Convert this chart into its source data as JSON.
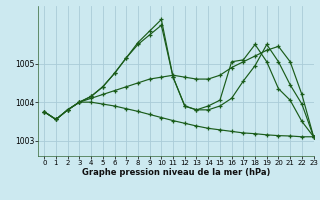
{
  "title": "Graphe pression niveau de la mer (hPa)",
  "background_color": "#cce9f0",
  "grid_color": "#aaccd8",
  "line_color": "#1a5c1a",
  "xlim": [
    -0.5,
    23
  ],
  "ylim": [
    1002.6,
    1006.5
  ],
  "yticks": [
    1003,
    1004,
    1005
  ],
  "xticks": [
    0,
    1,
    2,
    3,
    4,
    5,
    6,
    7,
    8,
    9,
    10,
    11,
    12,
    13,
    14,
    15,
    16,
    17,
    18,
    19,
    20,
    21,
    22,
    23
  ],
  "series": [
    {
      "x": [
        0,
        1,
        2,
        3,
        4,
        5,
        6,
        7,
        8,
        9,
        10,
        11,
        12,
        13,
        14,
        15,
        16,
        17,
        18,
        19,
        20,
        21,
        22,
        23
      ],
      "y": [
        1003.75,
        1003.55,
        1003.8,
        1004.0,
        1004.15,
        1004.4,
        1004.75,
        1005.15,
        1005.55,
        1005.85,
        1006.15,
        1004.65,
        1003.9,
        1003.8,
        1003.8,
        1003.9,
        1004.1,
        1004.55,
        1004.95,
        1005.5,
        1005.05,
        1004.45,
        1003.95,
        1003.1
      ]
    },
    {
      "x": [
        0,
        1,
        2,
        3,
        4,
        5,
        6,
        7,
        8,
        9,
        10,
        11,
        12,
        13,
        14,
        15,
        16,
        17,
        18,
        19,
        20,
        21,
        22,
        23
      ],
      "y": [
        1003.75,
        1003.55,
        1003.8,
        1004.0,
        1004.1,
        1004.2,
        1004.3,
        1004.4,
        1004.5,
        1004.6,
        1004.65,
        1004.7,
        1004.65,
        1004.6,
        1004.6,
        1004.7,
        1004.9,
        1005.05,
        1005.2,
        1005.35,
        1005.45,
        1005.05,
        1004.2,
        1003.1
      ]
    },
    {
      "x": [
        0,
        1,
        2,
        3,
        4,
        5,
        6,
        7,
        8,
        9,
        10,
        11,
        12,
        13,
        14,
        15,
        16,
        17,
        18,
        19,
        20,
        21,
        22,
        23
      ],
      "y": [
        1003.75,
        1003.55,
        1003.8,
        1004.0,
        1004.0,
        1003.95,
        1003.9,
        1003.83,
        1003.76,
        1003.68,
        1003.6,
        1003.52,
        1003.45,
        1003.38,
        1003.32,
        1003.28,
        1003.24,
        1003.2,
        1003.18,
        1003.15,
        1003.13,
        1003.12,
        1003.1,
        1003.1
      ]
    },
    {
      "x": [
        0,
        1,
        2,
        3,
        4,
        5,
        6,
        7,
        8,
        9,
        10,
        11,
        12,
        13,
        14,
        15,
        16,
        17,
        18,
        19,
        20,
        21,
        22,
        23
      ],
      "y": [
        1003.75,
        1003.55,
        1003.8,
        1004.0,
        1004.15,
        1004.4,
        1004.75,
        1005.15,
        1005.5,
        1005.75,
        1006.0,
        1004.65,
        1003.9,
        1003.8,
        1003.9,
        1004.05,
        1005.05,
        1005.1,
        1005.5,
        1005.05,
        1004.35,
        1004.05,
        1003.5,
        1003.1
      ]
    }
  ]
}
